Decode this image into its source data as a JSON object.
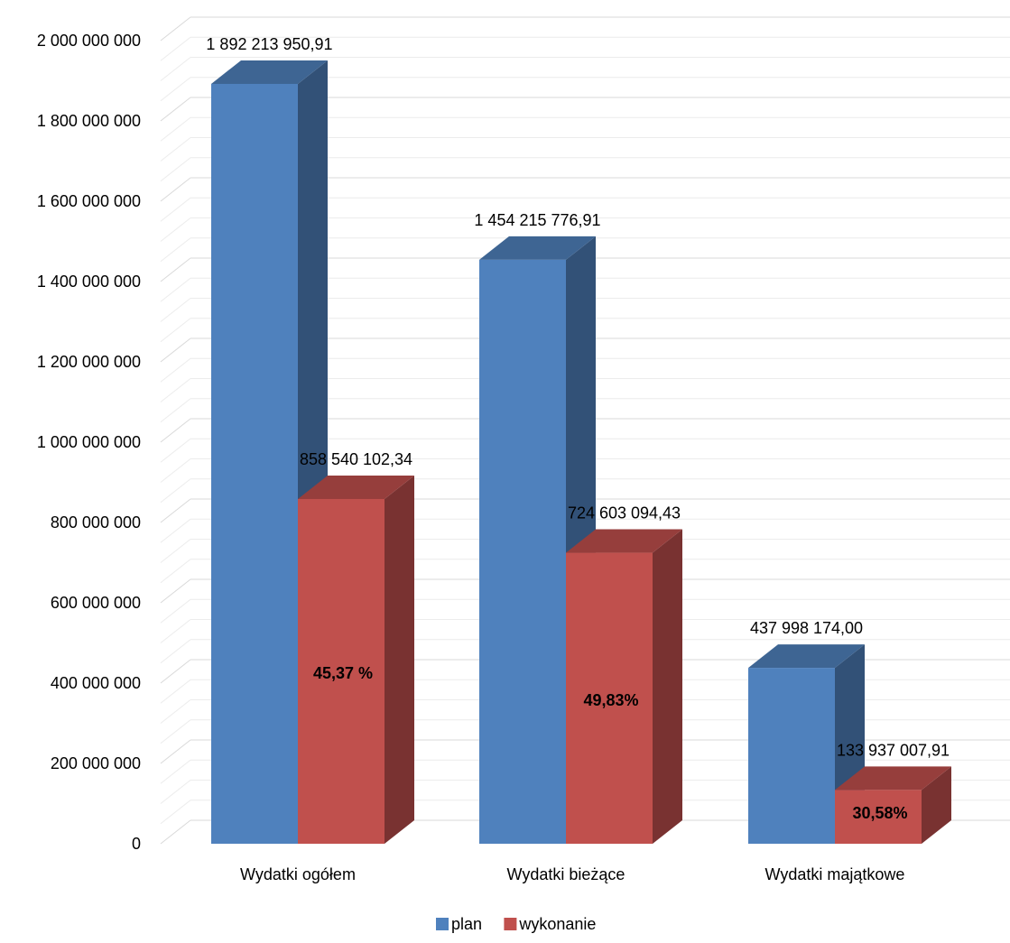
{
  "chart_data": {
    "type": "bar",
    "title": "",
    "xlabel": "",
    "ylabel": "",
    "ylim": [
      0,
      2000000000
    ],
    "yticks": [
      {
        "value": 0,
        "label": "0"
      },
      {
        "value": 200000000,
        "label": "200 000 000"
      },
      {
        "value": 400000000,
        "label": "400 000 000"
      },
      {
        "value": 600000000,
        "label": "600 000 000"
      },
      {
        "value": 800000000,
        "label": "800 000 000"
      },
      {
        "value": 1000000000,
        "label": "1 000 000 000"
      },
      {
        "value": 1200000000,
        "label": "1 200 000 000"
      },
      {
        "value": 1400000000,
        "label": "1 400 000 000"
      },
      {
        "value": 1600000000,
        "label": "1 600 000 000"
      },
      {
        "value": 1800000000,
        "label": "1 800 000 000"
      },
      {
        "value": 2000000000,
        "label": "2 000 000 000"
      }
    ],
    "grid": true,
    "three_d": true,
    "legend_position": "bottom",
    "categories": [
      "Wydatki ogółem",
      "Wydatki bieżące",
      "Wydatki majątkowe"
    ],
    "series": [
      {
        "name": "plan",
        "color": "#4F81BD",
        "values": [
          1892213950.91,
          1454215776.91,
          437998174.0
        ],
        "value_labels": [
          "1 892 213 950,91",
          "1 454 215 776,91",
          "437 998 174,00"
        ]
      },
      {
        "name": "wykonanie",
        "color": "#C0504D",
        "values": [
          858540102.34,
          724603094.43,
          133937007.91
        ],
        "value_labels": [
          "858 540 102,34",
          "724 603 094,43",
          "133 937 007,91"
        ],
        "percent_labels": [
          "45,37 %",
          "49,83%",
          "30,58%"
        ]
      }
    ]
  }
}
